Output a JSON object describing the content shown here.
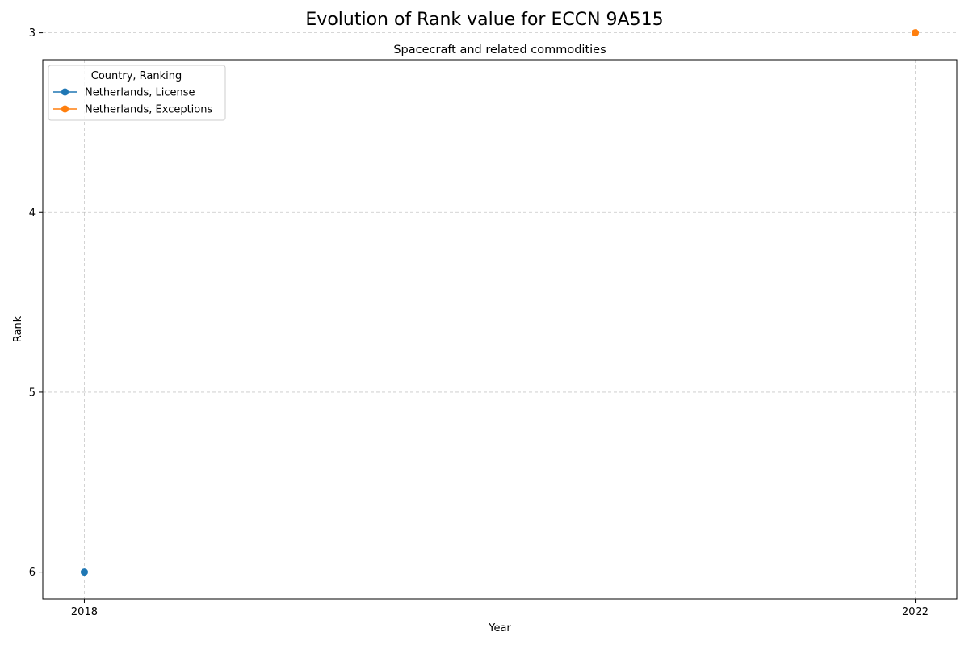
{
  "chart_data": {
    "type": "line",
    "title": "Evolution of Rank value for ECCN 9A515",
    "subtitle": "Spacecraft and related commodities",
    "xlabel": "Year",
    "ylabel": "Rank",
    "x_ticks": [
      2018,
      2022
    ],
    "x_range": [
      2017.8,
      2022.2
    ],
    "y_ticks": [
      3,
      4,
      5,
      6
    ],
    "y_range": [
      3.15,
      6.15
    ],
    "y_inverted": true,
    "grid": true,
    "legend": {
      "title": "Country, Ranking",
      "placement": "top-left"
    },
    "series": [
      {
        "name": "Netherlands, License",
        "color": "#1f77b4",
        "points": [
          {
            "x": 2018,
            "y": 6
          }
        ]
      },
      {
        "name": "Netherlands, Exceptions",
        "color": "#ff7f0e",
        "points": [
          {
            "x": 2022,
            "y": 3
          }
        ]
      }
    ]
  }
}
